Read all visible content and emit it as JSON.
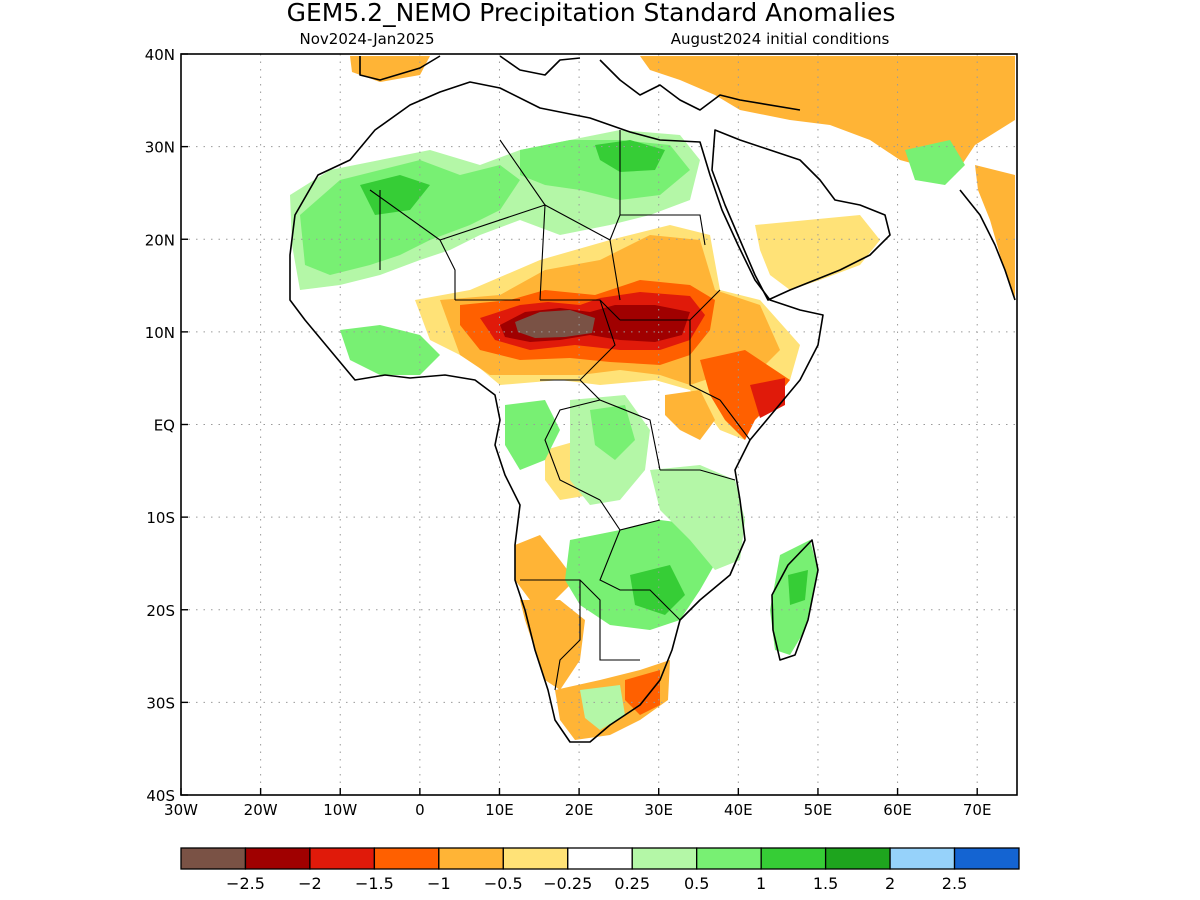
{
  "title": "GEM5.2_NEMO Precipitation Standard Anomalies",
  "period": "Nov2024-Jan2025",
  "init": "August2024 initial conditions",
  "lon_labels": [
    "30W",
    "20W",
    "10W",
    "0",
    "10E",
    "20E",
    "30E",
    "40E",
    "50E",
    "60E",
    "70E"
  ],
  "lat_labels": [
    "40N",
    "30N",
    "20N",
    "10N",
    "EQ",
    "10S",
    "20S",
    "30S",
    "40S"
  ],
  "colorbar": {
    "colors": [
      "#7a5245",
      "#a00000",
      "#e01a0a",
      "#ff6000",
      "#ffb436",
      "#ffe277",
      "#ffffff",
      "#b4f7a7",
      "#78f073",
      "#36cd36",
      "#1ea51e",
      "#96d2fa",
      "#1464d2"
    ],
    "labels": [
      "-2.5",
      "-2",
      "-1.5",
      "-1",
      "-0.5",
      "-0.25",
      "0.25",
      "0.5",
      "1",
      "1.5",
      "2",
      "2.5"
    ]
  }
}
